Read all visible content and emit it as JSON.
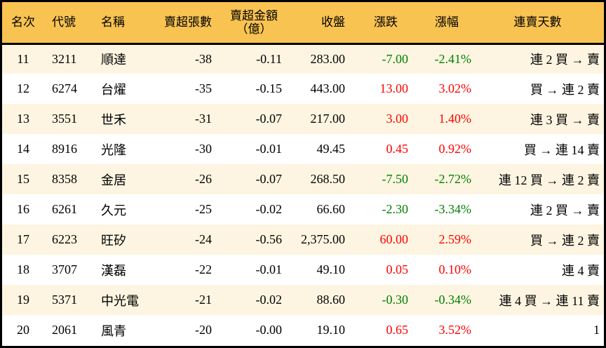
{
  "colors": {
    "header_bg": "#F9C352",
    "row_alt_bg": "#FDF5E1",
    "up": "#FF0000",
    "down": "#008000"
  },
  "headers": {
    "rank": "名次",
    "code": "代號",
    "name": "名稱",
    "net_sell_lots": "賣超張數",
    "net_sell_amount": "賣超金額",
    "net_sell_amount_unit": "（億）",
    "close": "收盤",
    "change": "漲跌",
    "change_pct": "漲幅",
    "streak": "連賣天數"
  },
  "rows": [
    {
      "rank": "11",
      "code": "3211",
      "name": "順達",
      "lots": "-38",
      "amount": "-0.11",
      "close": "283.00",
      "change": "-7.00",
      "pct": "-2.41%",
      "dir": "down",
      "streak": "連 2 買 → 賣"
    },
    {
      "rank": "12",
      "code": "6274",
      "name": "台燿",
      "lots": "-35",
      "amount": "-0.15",
      "close": "443.00",
      "change": "13.00",
      "pct": "3.02%",
      "dir": "up",
      "streak": "買 → 連 2 賣"
    },
    {
      "rank": "13",
      "code": "3551",
      "name": "世禾",
      "lots": "-31",
      "amount": "-0.07",
      "close": "217.00",
      "change": "3.00",
      "pct": "1.40%",
      "dir": "up",
      "streak": "連 3 買 → 賣"
    },
    {
      "rank": "14",
      "code": "8916",
      "name": "光隆",
      "lots": "-30",
      "amount": "-0.01",
      "close": "49.45",
      "change": "0.45",
      "pct": "0.92%",
      "dir": "up",
      "streak": "買 → 連 14 賣"
    },
    {
      "rank": "15",
      "code": "8358",
      "name": "金居",
      "lots": "-26",
      "amount": "-0.07",
      "close": "268.50",
      "change": "-7.50",
      "pct": "-2.72%",
      "dir": "down",
      "streak": "連 12 買 → 連 2 賣"
    },
    {
      "rank": "16",
      "code": "6261",
      "name": "久元",
      "lots": "-25",
      "amount": "-0.02",
      "close": "66.60",
      "change": "-2.30",
      "pct": "-3.34%",
      "dir": "down",
      "streak": "連 2 買 → 賣"
    },
    {
      "rank": "17",
      "code": "6223",
      "name": "旺矽",
      "lots": "-24",
      "amount": "-0.56",
      "close": "2,375.00",
      "change": "60.00",
      "pct": "2.59%",
      "dir": "up",
      "streak": "買 → 連 2 賣"
    },
    {
      "rank": "18",
      "code": "3707",
      "name": "漢磊",
      "lots": "-22",
      "amount": "-0.01",
      "close": "49.10",
      "change": "0.05",
      "pct": "0.10%",
      "dir": "up",
      "streak": "連 4 賣"
    },
    {
      "rank": "19",
      "code": "5371",
      "name": "中光電",
      "lots": "-21",
      "amount": "-0.02",
      "close": "88.60",
      "change": "-0.30",
      "pct": "-0.34%",
      "dir": "down",
      "streak": "連 4 買 → 連 11 賣"
    },
    {
      "rank": "20",
      "code": "2061",
      "name": "風青",
      "lots": "-20",
      "amount": "-0.00",
      "close": "19.10",
      "change": "0.65",
      "pct": "3.52%",
      "dir": "up",
      "streak": "1"
    }
  ]
}
